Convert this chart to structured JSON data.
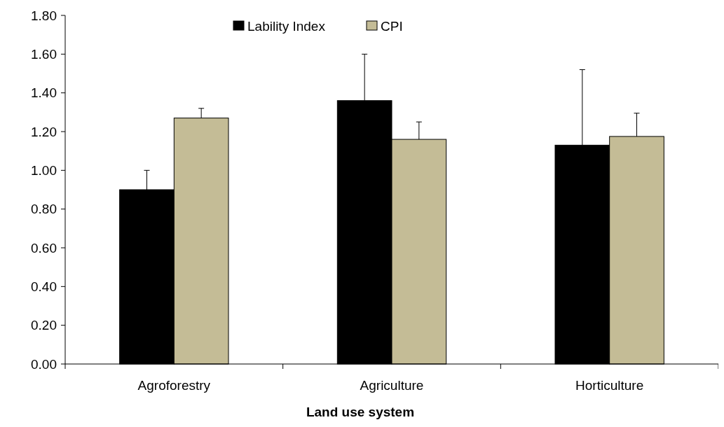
{
  "chart_data": {
    "type": "bar",
    "xlabel": "Land use system",
    "categories": [
      "Agroforestry",
      "Agriculture",
      "Horticulture"
    ],
    "series": [
      {
        "name": "Lability Index",
        "color": "#000000",
        "values": [
          0.9,
          1.36,
          1.13
        ],
        "errors": [
          0.1,
          0.24,
          0.39
        ]
      },
      {
        "name": "CPI",
        "color": "#c4bc96",
        "values": [
          1.27,
          1.16,
          1.175
        ],
        "errors": [
          0.05,
          0.09,
          0.12
        ]
      }
    ],
    "ylim": [
      0,
      1.8
    ],
    "yticks": [
      {
        "value": 0,
        "label": "0.00"
      },
      {
        "value": 0.2,
        "label": "0.20"
      },
      {
        "value": 0.4,
        "label": "0.40"
      },
      {
        "value": 0.6,
        "label": "0.60"
      },
      {
        "value": 0.8,
        "label": "0.80"
      },
      {
        "value": 1,
        "label": "1.00"
      },
      {
        "value": 1.2,
        "label": "1.20"
      },
      {
        "value": 1.4,
        "label": "1.40"
      },
      {
        "value": 1.6,
        "label": "1.60"
      },
      {
        "value": 1.8,
        "label": "1.80"
      }
    ],
    "grid": false,
    "legend": "top"
  }
}
